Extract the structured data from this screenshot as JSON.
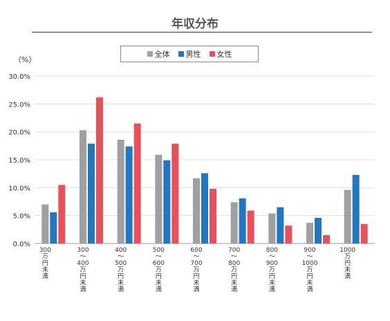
{
  "chart_data": {
    "type": "bar",
    "title": "年収分布",
    "ylabel": "（%）",
    "ylim": [
      0,
      30
    ],
    "yticks": [
      "0.0%",
      "5.0%",
      "10.0%",
      "15.0%",
      "20.0%",
      "25.0%",
      "30.0%"
    ],
    "grid": true,
    "legend_position": "top-center",
    "categories": [
      [
        "300",
        "万",
        "円",
        "未",
        "満"
      ],
      [
        "300",
        "〜",
        "400",
        "万",
        "円",
        "未",
        "満"
      ],
      [
        "400",
        "〜",
        "500",
        "万",
        "円",
        "未",
        "満"
      ],
      [
        "500",
        "〜",
        "600",
        "万",
        "円",
        "未",
        "満"
      ],
      [
        "600",
        "〜",
        "700",
        "万",
        "円",
        "未",
        "満"
      ],
      [
        "700",
        "〜",
        "800",
        "万",
        "円",
        "未",
        "満"
      ],
      [
        "800",
        "〜",
        "900",
        "万",
        "円",
        "未",
        "満"
      ],
      [
        "900",
        "〜",
        "1000",
        "万",
        "円",
        "未",
        "満"
      ],
      [
        "1000",
        "万",
        "円",
        "未",
        "満"
      ]
    ],
    "series": [
      {
        "name": "全体",
        "color": "#a0a0a0",
        "values": [
          7.0,
          20.3,
          18.6,
          15.9,
          11.7,
          7.4,
          5.4,
          3.7,
          9.6
        ]
      },
      {
        "name": "男性",
        "color": "#1f78c1",
        "values": [
          5.6,
          17.9,
          17.4,
          14.9,
          12.6,
          8.1,
          6.5,
          4.6,
          12.3
        ]
      },
      {
        "name": "女性",
        "color": "#e8505b",
        "values": [
          10.5,
          26.2,
          21.5,
          17.9,
          9.8,
          5.9,
          3.2,
          1.5,
          3.5
        ]
      }
    ]
  }
}
